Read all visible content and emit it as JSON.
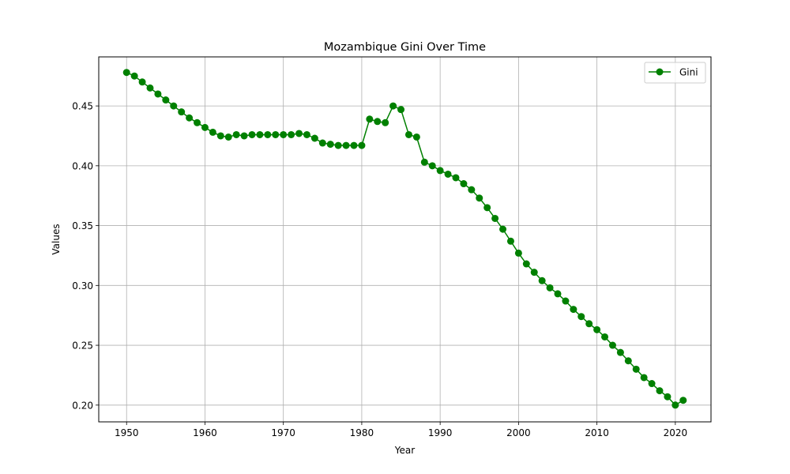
{
  "chart_data": {
    "type": "line",
    "title": "Mozambique Gini Over Time",
    "xlabel": "Year",
    "ylabel": "Values",
    "xlim": [
      1946.45,
      2024.55
    ],
    "ylim": [
      0.186,
      0.491
    ],
    "xticks": [
      1950,
      1960,
      1970,
      1980,
      1990,
      2000,
      2010,
      2020
    ],
    "yticks": [
      0.2,
      0.25,
      0.3,
      0.35,
      0.4,
      0.45
    ],
    "ytick_labels": [
      "0.20",
      "0.25",
      "0.30",
      "0.35",
      "0.40",
      "0.45"
    ],
    "grid": true,
    "legend_position": "top-right",
    "series": [
      {
        "name": "Gini",
        "color": "#008000",
        "marker": "circle",
        "x": [
          1950,
          1951,
          1952,
          1953,
          1954,
          1955,
          1956,
          1957,
          1958,
          1959,
          1960,
          1961,
          1962,
          1963,
          1964,
          1965,
          1966,
          1967,
          1968,
          1969,
          1970,
          1971,
          1972,
          1973,
          1974,
          1975,
          1976,
          1977,
          1978,
          1979,
          1980,
          1981,
          1982,
          1983,
          1984,
          1985,
          1986,
          1987,
          1988,
          1989,
          1990,
          1991,
          1992,
          1993,
          1994,
          1995,
          1996,
          1997,
          1998,
          1999,
          2000,
          2001,
          2002,
          2003,
          2004,
          2005,
          2006,
          2007,
          2008,
          2009,
          2010,
          2011,
          2012,
          2013,
          2014,
          2015,
          2016,
          2017,
          2018,
          2019,
          2020,
          2021
        ],
        "values": [
          0.478,
          0.475,
          0.47,
          0.465,
          0.46,
          0.455,
          0.45,
          0.445,
          0.44,
          0.436,
          0.432,
          0.428,
          0.425,
          0.424,
          0.426,
          0.425,
          0.426,
          0.426,
          0.426,
          0.426,
          0.426,
          0.426,
          0.427,
          0.426,
          0.423,
          0.419,
          0.418,
          0.417,
          0.417,
          0.417,
          0.417,
          0.439,
          0.437,
          0.436,
          0.45,
          0.447,
          0.426,
          0.424,
          0.403,
          0.4,
          0.396,
          0.393,
          0.39,
          0.385,
          0.38,
          0.373,
          0.365,
          0.356,
          0.347,
          0.337,
          0.327,
          0.318,
          0.311,
          0.304,
          0.298,
          0.293,
          0.287,
          0.28,
          0.274,
          0.268,
          0.263,
          0.257,
          0.25,
          0.244,
          0.237,
          0.23,
          0.223,
          0.218,
          0.212,
          0.207,
          0.2,
          0.204
        ]
      }
    ]
  }
}
